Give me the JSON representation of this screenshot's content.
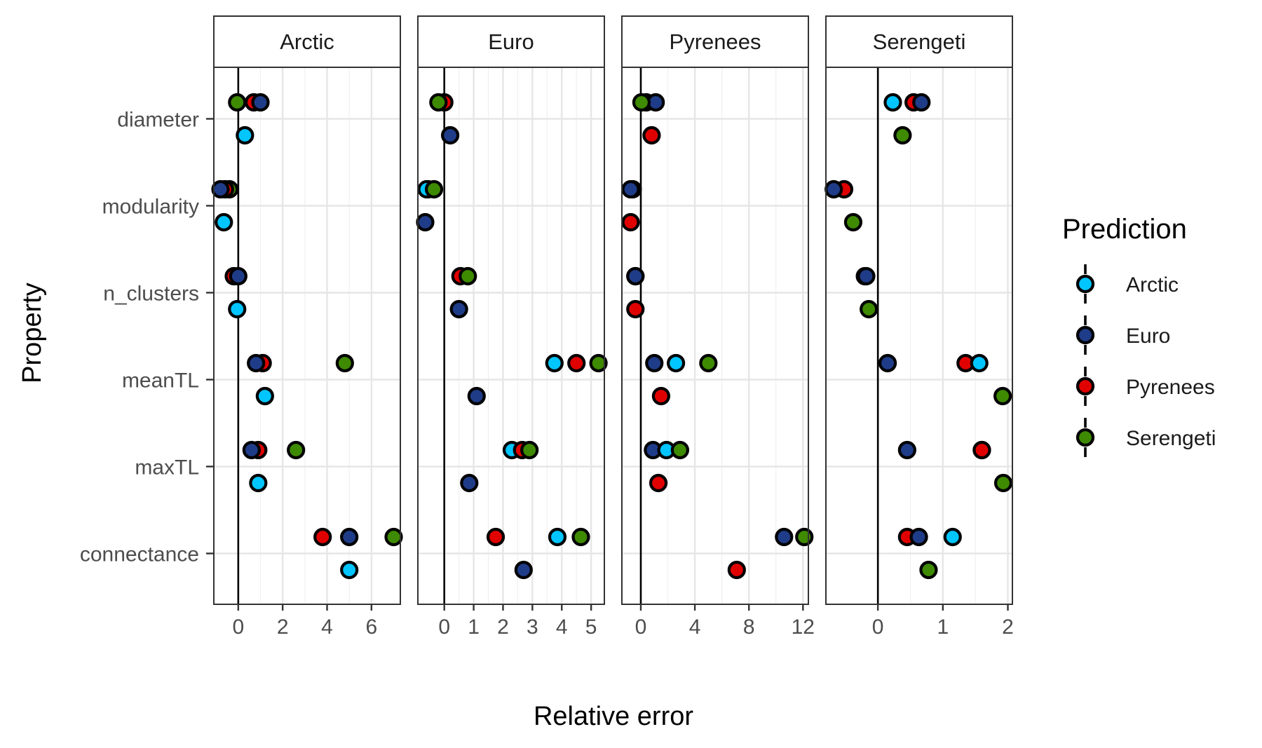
{
  "chart_data": {
    "type": "scatter",
    "xlabel": "Relative error",
    "ylabel": "Property",
    "grid": true,
    "legend": {
      "title": "Prediction",
      "position": "right",
      "entries": [
        "Arctic",
        "Euro",
        "Pyrenees",
        "Serengeti"
      ]
    },
    "colors": {
      "Arctic": "#00c5ff",
      "Euro": "#1f3c88",
      "Pyrenees": "#e00000",
      "Serengeti": "#3e8a00"
    },
    "properties": [
      "diameter",
      "modularity",
      "n_clusters",
      "meanTL",
      "maxTL",
      "connectance"
    ],
    "row_note": "each property has two rows: upper row shows the three cross-predictions, lower row shows the self-prediction",
    "facets": [
      {
        "title": "Arctic",
        "xlim": [
          -1.1,
          7.3
        ],
        "xticks": [
          0,
          2,
          4,
          6
        ],
        "tick_labels": [
          "0",
          "2",
          "4",
          "6"
        ],
        "points": [
          {
            "property": "diameter",
            "row": "upper",
            "prediction": "Pyrenees",
            "x": 0.7
          },
          {
            "property": "diameter",
            "row": "upper",
            "prediction": "Euro",
            "x": 1.0
          },
          {
            "property": "diameter",
            "row": "upper",
            "prediction": "Serengeti",
            "x": -0.05
          },
          {
            "property": "diameter",
            "row": "lower",
            "prediction": "Arctic",
            "x": 0.3
          },
          {
            "property": "modularity",
            "row": "upper",
            "prediction": "Serengeti",
            "x": -0.4
          },
          {
            "property": "modularity",
            "row": "upper",
            "prediction": "Pyrenees",
            "x": -0.6
          },
          {
            "property": "modularity",
            "row": "upper",
            "prediction": "Euro",
            "x": -0.8
          },
          {
            "property": "modularity",
            "row": "lower",
            "prediction": "Arctic",
            "x": -0.65
          },
          {
            "property": "n_clusters",
            "row": "upper",
            "prediction": "Pyrenees",
            "x": -0.2
          },
          {
            "property": "n_clusters",
            "row": "upper",
            "prediction": "Euro",
            "x": 0.0
          },
          {
            "property": "n_clusters",
            "row": "lower",
            "prediction": "Arctic",
            "x": -0.05
          },
          {
            "property": "meanTL",
            "row": "upper",
            "prediction": "Pyrenees",
            "x": 1.1
          },
          {
            "property": "meanTL",
            "row": "upper",
            "prediction": "Euro",
            "x": 0.8
          },
          {
            "property": "meanTL",
            "row": "upper",
            "prediction": "Serengeti",
            "x": 4.8
          },
          {
            "property": "meanTL",
            "row": "lower",
            "prediction": "Arctic",
            "x": 1.2
          },
          {
            "property": "maxTL",
            "row": "upper",
            "prediction": "Pyrenees",
            "x": 0.9
          },
          {
            "property": "maxTL",
            "row": "upper",
            "prediction": "Euro",
            "x": 0.6
          },
          {
            "property": "maxTL",
            "row": "upper",
            "prediction": "Serengeti",
            "x": 2.6
          },
          {
            "property": "maxTL",
            "row": "lower",
            "prediction": "Arctic",
            "x": 0.9
          },
          {
            "property": "connectance",
            "row": "upper",
            "prediction": "Pyrenees",
            "x": 3.8
          },
          {
            "property": "connectance",
            "row": "upper",
            "prediction": "Euro",
            "x": 5.0
          },
          {
            "property": "connectance",
            "row": "upper",
            "prediction": "Serengeti",
            "x": 7.0
          },
          {
            "property": "connectance",
            "row": "lower",
            "prediction": "Arctic",
            "x": 5.0
          }
        ]
      },
      {
        "title": "Euro",
        "xlim": [
          -0.9,
          5.45
        ],
        "xticks": [
          0,
          1,
          2,
          3,
          4,
          5
        ],
        "tick_labels": [
          "0",
          "1",
          "2",
          "3",
          "4",
          "5"
        ],
        "points": [
          {
            "property": "diameter",
            "row": "upper",
            "prediction": "Pyrenees",
            "x": 0.0
          },
          {
            "property": "diameter",
            "row": "upper",
            "prediction": "Serengeti",
            "x": -0.2
          },
          {
            "property": "diameter",
            "row": "lower",
            "prediction": "Euro",
            "x": 0.2
          },
          {
            "property": "modularity",
            "row": "upper",
            "prediction": "Pyrenees",
            "x": -0.55
          },
          {
            "property": "modularity",
            "row": "upper",
            "prediction": "Arctic",
            "x": -0.6
          },
          {
            "property": "modularity",
            "row": "upper",
            "prediction": "Serengeti",
            "x": -0.35
          },
          {
            "property": "modularity",
            "row": "lower",
            "prediction": "Euro",
            "x": -0.65
          },
          {
            "property": "n_clusters",
            "row": "upper",
            "prediction": "Pyrenees",
            "x": 0.55
          },
          {
            "property": "n_clusters",
            "row": "upper",
            "prediction": "Serengeti",
            "x": 0.8
          },
          {
            "property": "n_clusters",
            "row": "lower",
            "prediction": "Euro",
            "x": 0.5
          },
          {
            "property": "meanTL",
            "row": "upper",
            "prediction": "Arctic",
            "x": 3.75
          },
          {
            "property": "meanTL",
            "row": "upper",
            "prediction": "Pyrenees",
            "x": 4.5
          },
          {
            "property": "meanTL",
            "row": "upper",
            "prediction": "Serengeti",
            "x": 5.25
          },
          {
            "property": "meanTL",
            "row": "lower",
            "prediction": "Euro",
            "x": 1.1
          },
          {
            "property": "maxTL",
            "row": "upper",
            "prediction": "Arctic",
            "x": 2.3
          },
          {
            "property": "maxTL",
            "row": "upper",
            "prediction": "Pyrenees",
            "x": 2.65
          },
          {
            "property": "maxTL",
            "row": "upper",
            "prediction": "Serengeti",
            "x": 2.9
          },
          {
            "property": "maxTL",
            "row": "lower",
            "prediction": "Euro",
            "x": 0.85
          },
          {
            "property": "connectance",
            "row": "upper",
            "prediction": "Pyrenees",
            "x": 1.75
          },
          {
            "property": "connectance",
            "row": "upper",
            "prediction": "Arctic",
            "x": 3.85
          },
          {
            "property": "connectance",
            "row": "upper",
            "prediction": "Serengeti",
            "x": 4.65
          },
          {
            "property": "connectance",
            "row": "lower",
            "prediction": "Euro",
            "x": 2.7
          }
        ]
      },
      {
        "title": "Pyrenees",
        "xlim": [
          -1.4,
          12.4
        ],
        "xticks": [
          0,
          4,
          8,
          12
        ],
        "tick_labels": [
          "0",
          "4",
          "8",
          "12"
        ],
        "points": [
          {
            "property": "diameter",
            "row": "upper",
            "prediction": "Arctic",
            "x": 0.4
          },
          {
            "property": "diameter",
            "row": "upper",
            "prediction": "Euro",
            "x": 1.1
          },
          {
            "property": "diameter",
            "row": "upper",
            "prediction": "Serengeti",
            "x": 0.05
          },
          {
            "property": "diameter",
            "row": "lower",
            "prediction": "Pyrenees",
            "x": 0.8
          },
          {
            "property": "modularity",
            "row": "upper",
            "prediction": "Arctic",
            "x": -0.6
          },
          {
            "property": "modularity",
            "row": "upper",
            "prediction": "Euro",
            "x": -0.75
          },
          {
            "property": "modularity",
            "row": "lower",
            "prediction": "Pyrenees",
            "x": -0.75
          },
          {
            "property": "n_clusters",
            "row": "upper",
            "prediction": "Arctic",
            "x": -0.4
          },
          {
            "property": "n_clusters",
            "row": "upper",
            "prediction": "Euro",
            "x": -0.4
          },
          {
            "property": "n_clusters",
            "row": "lower",
            "prediction": "Pyrenees",
            "x": -0.4
          },
          {
            "property": "meanTL",
            "row": "upper",
            "prediction": "Euro",
            "x": 1.0
          },
          {
            "property": "meanTL",
            "row": "upper",
            "prediction": "Arctic",
            "x": 2.6
          },
          {
            "property": "meanTL",
            "row": "upper",
            "prediction": "Serengeti",
            "x": 5.0
          },
          {
            "property": "meanTL",
            "row": "lower",
            "prediction": "Pyrenees",
            "x": 1.5
          },
          {
            "property": "maxTL",
            "row": "upper",
            "prediction": "Euro",
            "x": 0.9
          },
          {
            "property": "maxTL",
            "row": "upper",
            "prediction": "Arctic",
            "x": 1.9
          },
          {
            "property": "maxTL",
            "row": "upper",
            "prediction": "Serengeti",
            "x": 2.9
          },
          {
            "property": "maxTL",
            "row": "lower",
            "prediction": "Pyrenees",
            "x": 1.3
          },
          {
            "property": "connectance",
            "row": "upper",
            "prediction": "Euro",
            "x": 10.6
          },
          {
            "property": "connectance",
            "row": "upper",
            "prediction": "Serengeti",
            "x": 12.1
          },
          {
            "property": "connectance",
            "row": "lower",
            "prediction": "Pyrenees",
            "x": 7.1
          }
        ]
      },
      {
        "title": "Serengeti",
        "xlim": [
          -0.8,
          2.07
        ],
        "xticks": [
          0,
          1,
          2
        ],
        "tick_labels": [
          "0",
          "1",
          "2"
        ],
        "points": [
          {
            "property": "diameter",
            "row": "upper",
            "prediction": "Arctic",
            "x": 0.23
          },
          {
            "property": "diameter",
            "row": "upper",
            "prediction": "Pyrenees",
            "x": 0.55
          },
          {
            "property": "diameter",
            "row": "upper",
            "prediction": "Euro",
            "x": 0.67
          },
          {
            "property": "diameter",
            "row": "lower",
            "prediction": "Serengeti",
            "x": 0.38
          },
          {
            "property": "modularity",
            "row": "upper",
            "prediction": "Pyrenees",
            "x": -0.52
          },
          {
            "property": "modularity",
            "row": "upper",
            "prediction": "Euro",
            "x": -0.68
          },
          {
            "property": "modularity",
            "row": "lower",
            "prediction": "Serengeti",
            "x": -0.38
          },
          {
            "property": "n_clusters",
            "row": "upper",
            "prediction": "Arctic",
            "x": -0.2
          },
          {
            "property": "n_clusters",
            "row": "upper",
            "prediction": "Euro",
            "x": -0.18
          },
          {
            "property": "n_clusters",
            "row": "lower",
            "prediction": "Serengeti",
            "x": -0.14
          },
          {
            "property": "meanTL",
            "row": "upper",
            "prediction": "Euro",
            "x": 0.15
          },
          {
            "property": "meanTL",
            "row": "upper",
            "prediction": "Pyrenees",
            "x": 1.35
          },
          {
            "property": "meanTL",
            "row": "upper",
            "prediction": "Arctic",
            "x": 1.56
          },
          {
            "property": "meanTL",
            "row": "lower",
            "prediction": "Serengeti",
            "x": 1.92
          },
          {
            "property": "maxTL",
            "row": "upper",
            "prediction": "Euro",
            "x": 0.45
          },
          {
            "property": "maxTL",
            "row": "upper",
            "prediction": "Arctic",
            "x": 1.6
          },
          {
            "property": "maxTL",
            "row": "upper",
            "prediction": "Pyrenees",
            "x": 1.6
          },
          {
            "property": "maxTL",
            "row": "lower",
            "prediction": "Serengeti",
            "x": 1.93
          },
          {
            "property": "connectance",
            "row": "upper",
            "prediction": "Pyrenees",
            "x": 0.45
          },
          {
            "property": "connectance",
            "row": "upper",
            "prediction": "Euro",
            "x": 0.63
          },
          {
            "property": "connectance",
            "row": "upper",
            "prediction": "Arctic",
            "x": 1.15
          },
          {
            "property": "connectance",
            "row": "lower",
            "prediction": "Serengeti",
            "x": 0.78
          }
        ]
      }
    ]
  }
}
